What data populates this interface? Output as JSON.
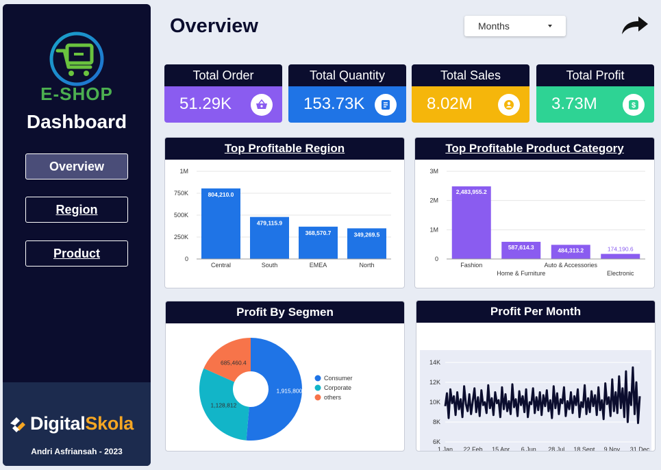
{
  "sidebar": {
    "brand": "E-SHOP",
    "title": "Dashboard",
    "nav": [
      {
        "label": "Overview",
        "active": true
      },
      {
        "label": "Region",
        "active": false
      },
      {
        "label": "Product",
        "active": false
      }
    ],
    "footer_brand_a": "Digital",
    "footer_brand_b": "Skola",
    "author": "Andri Asfriansah  -  2023"
  },
  "header": {
    "title": "Overview",
    "period_select": "Months"
  },
  "kpis": [
    {
      "label": "Total Order",
      "value": "51.29K",
      "color": "#8a5cf0",
      "icon": "basket-icon"
    },
    {
      "label": "Total Quantity",
      "value": "153.73K",
      "color": "#1f74e6",
      "icon": "document-icon"
    },
    {
      "label": "Total Sales",
      "value": "8.02M",
      "color": "#f5b60b",
      "icon": "coin-icon"
    },
    {
      "label": "Total Profit",
      "value": "3.73M",
      "color": "#2ed394",
      "icon": "dollar-icon"
    }
  ],
  "colors": {
    "dark": "#0b0d2e",
    "blue": "#1f74e6",
    "purple": "#8a5cf0",
    "teal": "#12b5c8",
    "orange": "#f7744a"
  },
  "chart_data": [
    {
      "type": "bar",
      "title": "Top Profitable Region",
      "categories": [
        "Central",
        "South",
        "EMEA",
        "North"
      ],
      "values": [
        804210.0,
        479115.9,
        368570.7,
        349269.5
      ],
      "labels": [
        "804,210.0",
        "479,115.9",
        "368,570.7",
        "349,269.5"
      ],
      "yticks": [
        "0",
        "250K",
        "500K",
        "750K",
        "1M"
      ],
      "ylim": [
        0,
        1000000
      ]
    },
    {
      "type": "bar",
      "title": "Top Profitable Product Category",
      "categories": [
        "Fashion",
        "Home & Furniture",
        "Auto & Accessories",
        "Electronic"
      ],
      "values": [
        2483955.2,
        587614.3,
        484313.2,
        174190.6
      ],
      "labels": [
        "2,483,955.2",
        "587,614.3",
        "484,313.2",
        "174,190.6"
      ],
      "yticks": [
        "0",
        "1M",
        "2M",
        "3M"
      ],
      "ylim": [
        0,
        3000000
      ]
    },
    {
      "type": "pie",
      "title": "Profit By Segmen",
      "categories": [
        "Consumer",
        "Corporate",
        "others"
      ],
      "values": [
        1915800.9,
        1128812,
        685460.4
      ],
      "labels": [
        "1,915,800.9",
        "1,128,812",
        "685,460.4"
      ],
      "colors": [
        "#1f74e6",
        "#12b5c8",
        "#f7744a"
      ],
      "legend": "right"
    },
    {
      "type": "line",
      "title": "Profit Per Month",
      "xticks": [
        "1 Jan",
        "22 Feb",
        "15 Apr",
        "6 Jun",
        "28 Jul",
        "18 Sept",
        "9 Nov",
        "31 Dec"
      ],
      "yticks": [
        "6K",
        "8K",
        "10K",
        "12K",
        "14K"
      ],
      "ylim": [
        6000,
        14000
      ],
      "y": [
        9600,
        10900,
        8400,
        11300,
        9900,
        10600,
        8700,
        11000,
        9300,
        10300,
        8500,
        11600,
        9800,
        9100,
        10800,
        8800,
        10100,
        11400,
        9000,
        10500,
        8600,
        11200,
        9700,
        10000,
        8900,
        11700,
        9400,
        10400,
        8700,
        11000,
        9900,
        10200,
        8500,
        11500,
        9300,
        10800,
        9100,
        10100,
        8800,
        11800,
        9500,
        10300,
        8600,
        11100,
        9700,
        10600,
        9000,
        11300,
        8500,
        10000,
        9800,
        11400,
        8900,
        10500,
        9200,
        11000,
        8700,
        10700,
        9600,
        11200,
        9100,
        10200,
        8400,
        11600,
        9400,
        10900,
        8800,
        10300,
        9900,
        11500,
        8600,
        10100,
        9300,
        11000,
        8900,
        10600,
        9700,
        11300,
        8500,
        10000,
        9500,
        11700,
        8800,
        10400,
        9000,
        11100,
        9600,
        10700,
        8700,
        11500,
        9200,
        10200,
        8300,
        11900,
        9800,
        10500,
        8600,
        12300,
        9100,
        11000,
        8900,
        12600,
        9400,
        11400,
        8500,
        13100,
        8000,
        11000,
        9700,
        13500,
        8800,
        12000,
        7900,
        10600
      ]
    }
  ]
}
